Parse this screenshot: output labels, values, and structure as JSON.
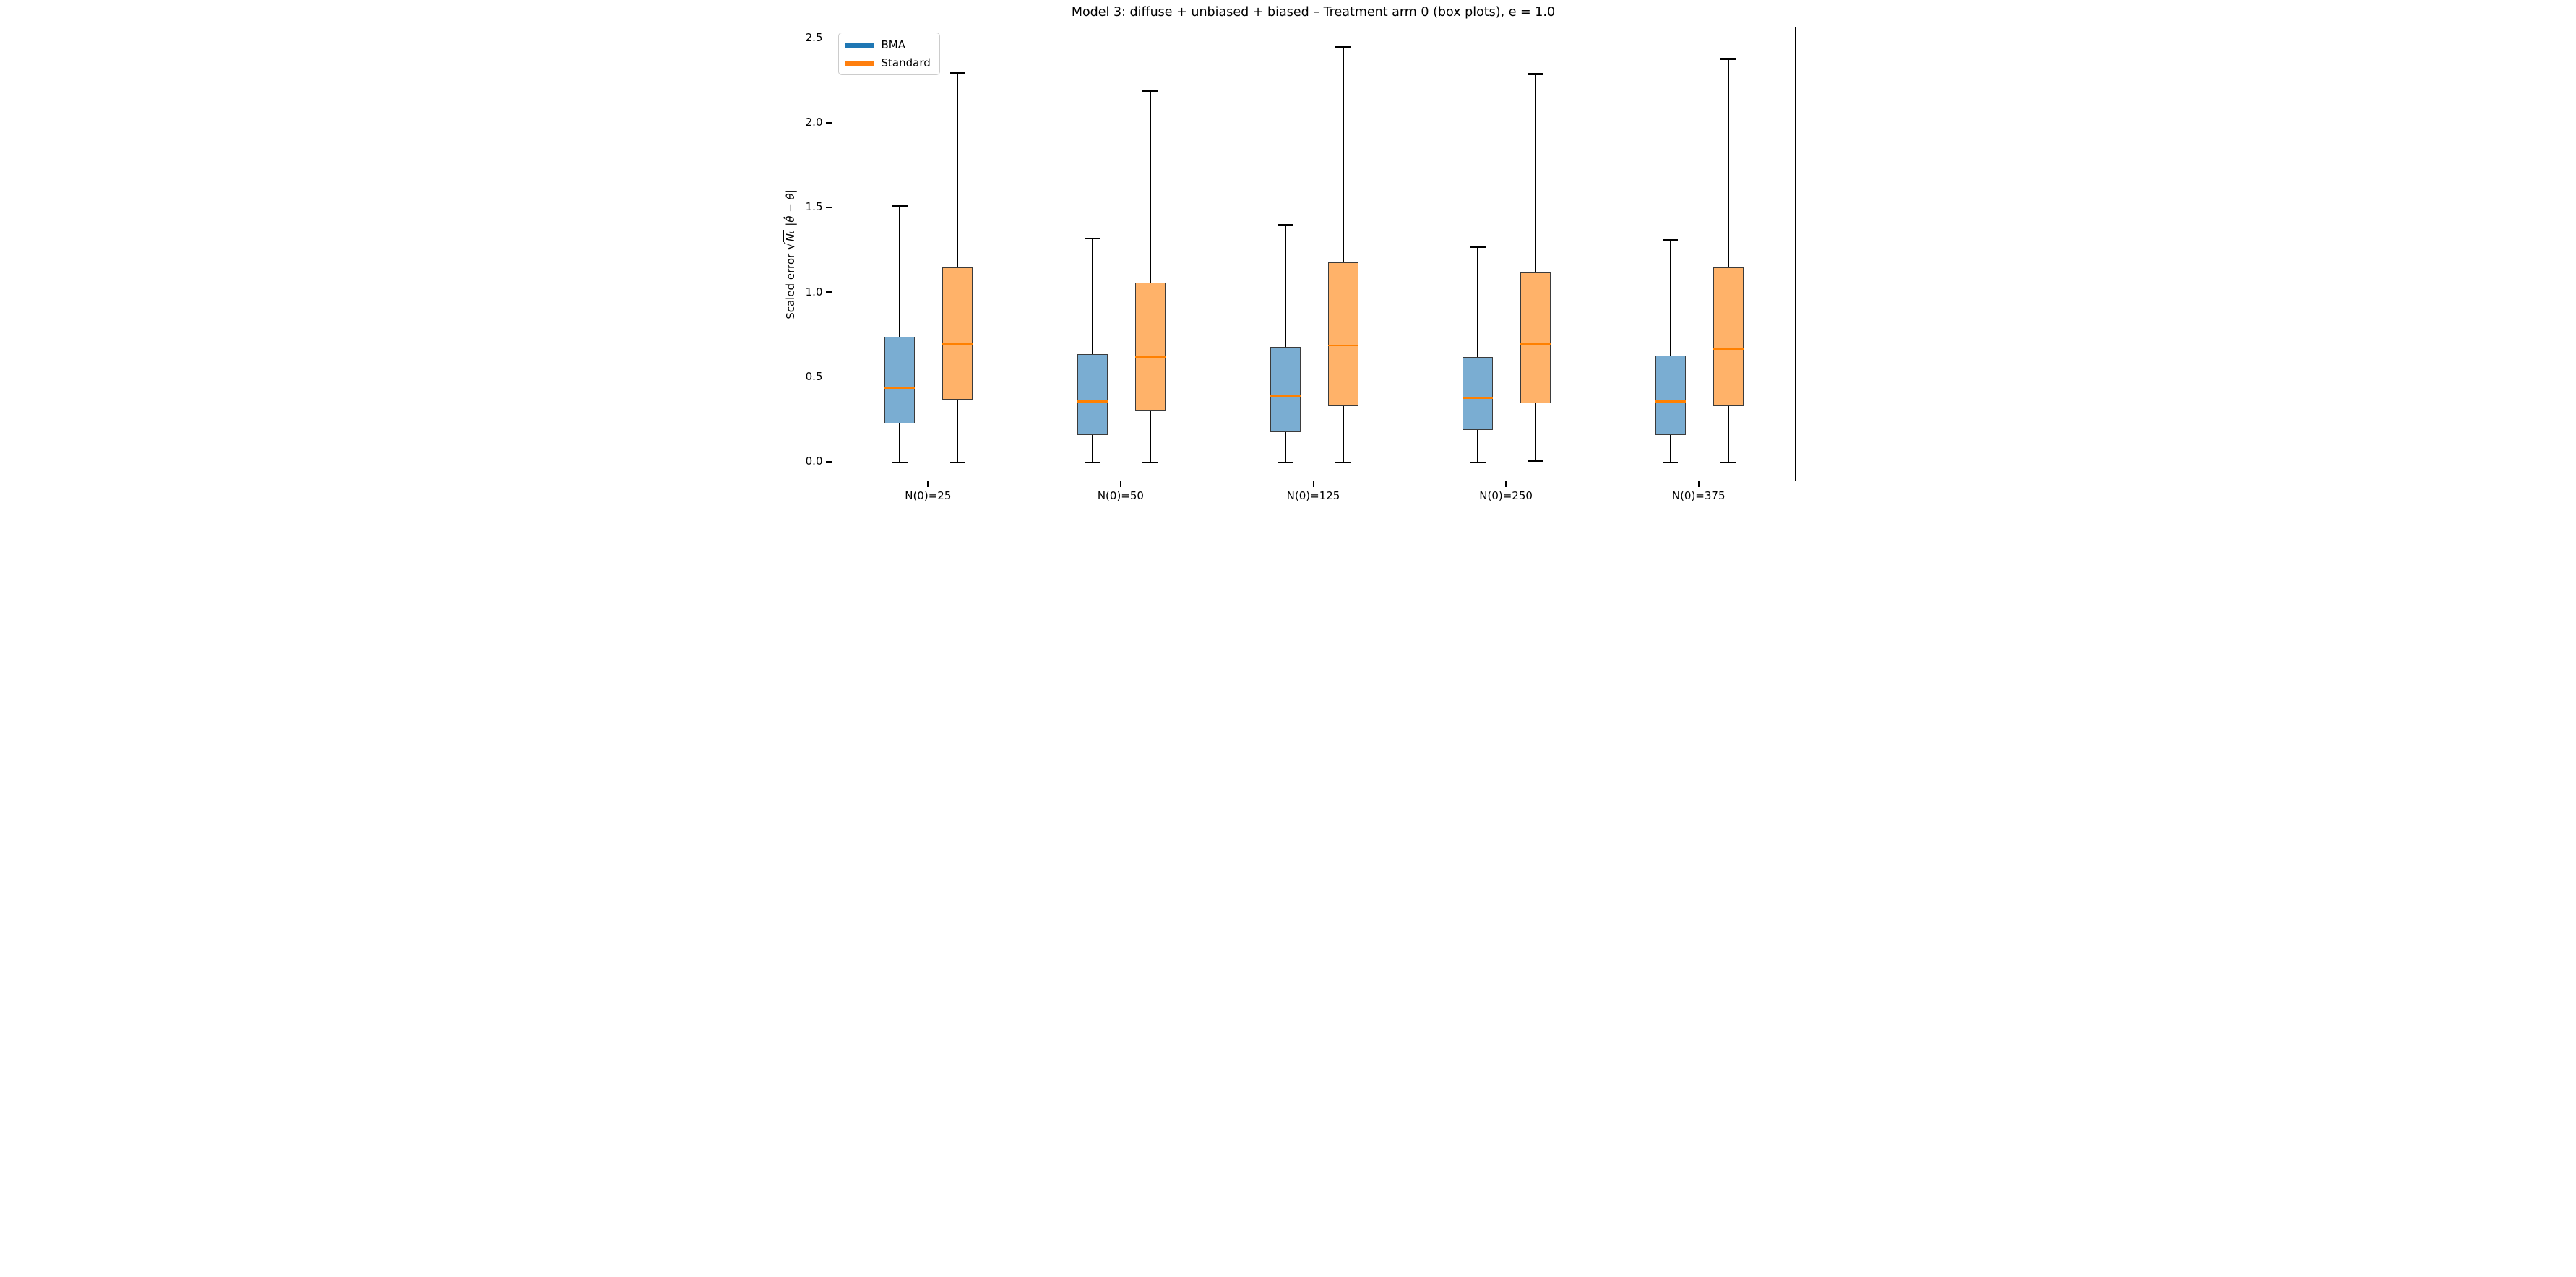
{
  "title": "Model 3: diffuse + unbiased + biased – Treatment arm 0 (box plots), e = 1.0",
  "ylabel": {
    "prefix": "Scaled error ",
    "sqrt": "√",
    "radicand": "Nₜ",
    "suffix": " |θ̂ − θ|"
  },
  "legend": [
    {
      "label": "BMA",
      "color": "#1f77b4"
    },
    {
      "label": "Standard",
      "color": "#ff7f0e"
    }
  ],
  "colors": {
    "bma_fill": "#7aadd2",
    "standard_fill": "#ffb269",
    "box_edge": "#3b3b3b",
    "whisker": "#000000",
    "median": "#ff8000",
    "spine": "#000000",
    "legend_border": "#cccccc"
  },
  "chart_data": {
    "type": "boxplot",
    "title": "Model 3: diffuse + unbiased + biased – Treatment arm 0 (box plots), e = 1.0",
    "xlabel": "",
    "ylabel": "Scaled error sqrt(N_t) |theta_hat - theta|",
    "categories": [
      "N(0)=25",
      "N(0)=50",
      "N(0)=125",
      "N(0)=250",
      "N(0)=375"
    ],
    "y_ticks": [
      "0.0",
      "0.5",
      "1.0",
      "1.5",
      "2.0",
      "2.5"
    ],
    "ylim": [
      -0.12,
      2.57
    ],
    "grid": false,
    "legend_position": "upper left",
    "series": [
      {
        "name": "BMA",
        "fill": "#7aadd2",
        "boxes": [
          {
            "whislo": 0.0,
            "q1": 0.23,
            "med": 0.44,
            "q3": 0.74,
            "whishi": 1.51
          },
          {
            "whislo": 0.0,
            "q1": 0.16,
            "med": 0.36,
            "q3": 0.64,
            "whishi": 1.32
          },
          {
            "whislo": 0.0,
            "q1": 0.18,
            "med": 0.39,
            "q3": 0.68,
            "whishi": 1.4
          },
          {
            "whislo": 0.0,
            "q1": 0.19,
            "med": 0.38,
            "q3": 0.62,
            "whishi": 1.27
          },
          {
            "whislo": 0.0,
            "q1": 0.16,
            "med": 0.36,
            "q3": 0.63,
            "whishi": 1.31
          }
        ]
      },
      {
        "name": "Standard",
        "fill": "#ffb269",
        "boxes": [
          {
            "whislo": 0.0,
            "q1": 0.37,
            "med": 0.7,
            "q3": 1.15,
            "whishi": 2.3
          },
          {
            "whislo": 0.0,
            "q1": 0.3,
            "med": 0.62,
            "q3": 1.06,
            "whishi": 2.19
          },
          {
            "whislo": 0.0,
            "q1": 0.33,
            "med": 0.69,
            "q3": 1.18,
            "whishi": 2.45
          },
          {
            "whislo": 0.01,
            "q1": 0.35,
            "med": 0.7,
            "q3": 1.12,
            "whishi": 2.29
          },
          {
            "whislo": 0.0,
            "q1": 0.33,
            "med": 0.67,
            "q3": 1.15,
            "whishi": 2.38
          }
        ]
      }
    ]
  }
}
